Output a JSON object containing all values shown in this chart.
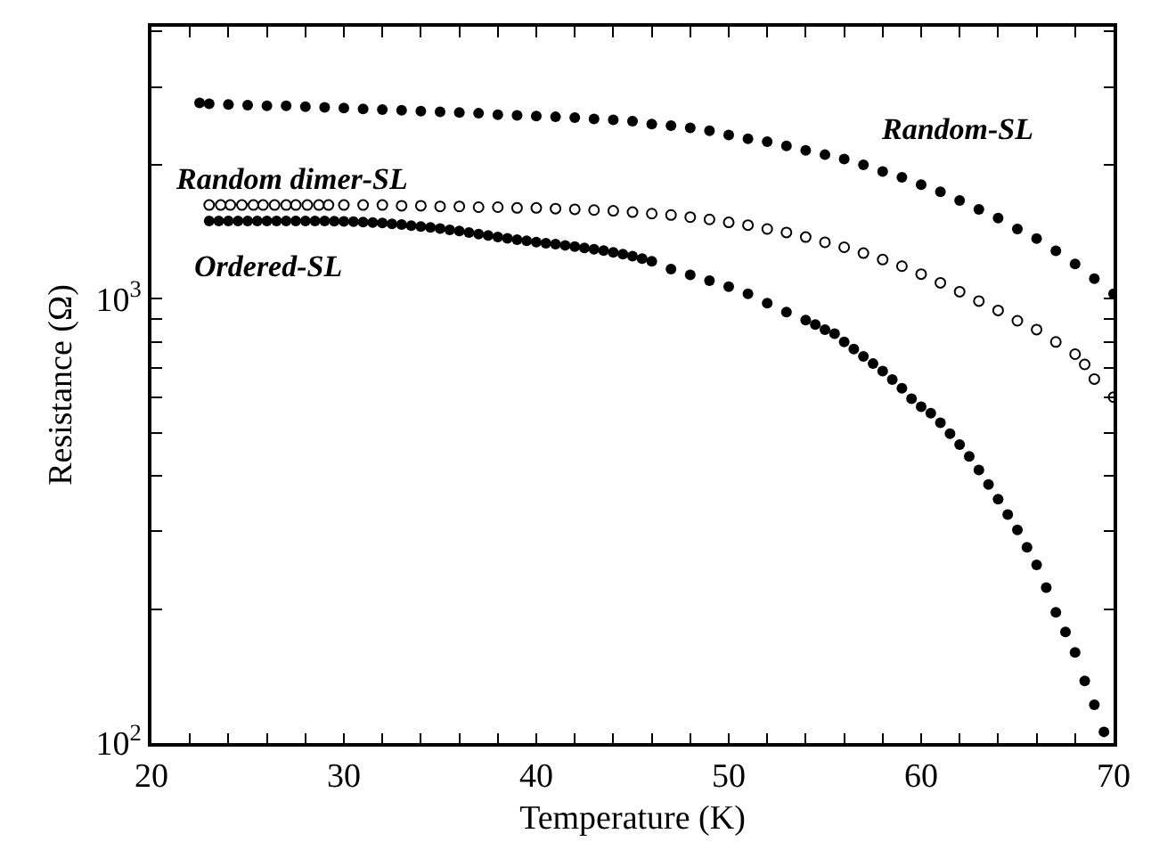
{
  "chart_data": {
    "type": "scatter",
    "xlabel": "Temperature (K)",
    "ylabel": "Resistance (Ω)",
    "log": "y",
    "legend": false,
    "xlim": [
      20,
      70
    ],
    "ylim": [
      100,
      4100
    ],
    "xticks": [
      20,
      {
        "value": 22,
        "label": null
      },
      {
        "value": 24,
        "label": null
      },
      {
        "value": 26,
        "label": null
      },
      {
        "value": 28,
        "label": null
      },
      30,
      {
        "value": 32,
        "label": null
      },
      {
        "value": 34,
        "label": null
      },
      {
        "value": 36,
        "label": null
      },
      {
        "value": 38,
        "label": null
      },
      40,
      {
        "value": 42,
        "label": null
      },
      {
        "value": 44,
        "label": null
      },
      {
        "value": 46,
        "label": null
      },
      {
        "value": 48,
        "label": null
      },
      50,
      {
        "value": 52,
        "label": null
      },
      {
        "value": 54,
        "label": null
      },
      {
        "value": 56,
        "label": null
      },
      {
        "value": 58,
        "label": null
      },
      60,
      {
        "value": 62,
        "label": null
      },
      {
        "value": 64,
        "label": null
      },
      {
        "value": 66,
        "label": null
      },
      {
        "value": 68,
        "label": null
      },
      70
    ],
    "yticks": [
      {
        "value": 100,
        "label": "10$^{2}$"
      },
      {
        "value": 200,
        "label": null
      },
      {
        "value": 300,
        "label": null
      },
      {
        "value": 400,
        "label": null
      },
      {
        "value": 500,
        "label": null
      },
      {
        "value": 600,
        "label": null
      },
      {
        "value": 700,
        "label": null
      },
      {
        "value": 800,
        "label": null
      },
      {
        "value": 900,
        "label": null
      },
      {
        "value": 1000,
        "label": "10$^{3}$"
      },
      {
        "value": 2000,
        "label": null
      },
      {
        "value": 3000,
        "label": null
      },
      {
        "value": 4000,
        "label": null
      }
    ],
    "series": [
      {
        "name": "Random-SL",
        "color": "#000000",
        "marker": "circle",
        "x": [
          22.5,
          23,
          24,
          25,
          26,
          27,
          28,
          29,
          30,
          31,
          32,
          33,
          34,
          35,
          36,
          37,
          38,
          39,
          40,
          41,
          42,
          43,
          44,
          45,
          46,
          47,
          48,
          49,
          50,
          51,
          52,
          53,
          54,
          55,
          56,
          57,
          58,
          59,
          60,
          61,
          62,
          63,
          64,
          65,
          66,
          67,
          68,
          69,
          70
        ],
        "values": [
          2761,
          2750,
          2741,
          2730,
          2720,
          2720,
          2709,
          2699,
          2689,
          2679,
          2668,
          2658,
          2648,
          2638,
          2628,
          2618,
          2599,
          2589,
          2579,
          2570,
          2560,
          2541,
          2531,
          2512,
          2474,
          2455,
          2427,
          2391,
          2338,
          2294,
          2260,
          2210,
          2160,
          2112,
          2064,
          2003,
          1936,
          1879,
          1809,
          1742,
          1665,
          1591,
          1521,
          1437,
          1368,
          1283,
          1199,
          1111,
          1027
        ]
      },
      {
        "name": "Random dimer-SL",
        "color": "#000000",
        "marker": "circle-open",
        "x": [
          23.0,
          23.6,
          24.1,
          24.7,
          25.3,
          25.8,
          26.4,
          27.0,
          27.5,
          28.1,
          28.7,
          29.2,
          30,
          31,
          32,
          33,
          34,
          35,
          36,
          37,
          38,
          39,
          40,
          41,
          42,
          43,
          44,
          45,
          46,
          47,
          48,
          49,
          50,
          51,
          52,
          53,
          54,
          55,
          56,
          57,
          58,
          59,
          60,
          61,
          62,
          63,
          64,
          65,
          66,
          67,
          68,
          68.5,
          69,
          70
        ],
        "values": [
          1627,
          1627,
          1627,
          1627,
          1627,
          1627,
          1627,
          1627,
          1627,
          1627,
          1627,
          1627,
          1627,
          1627,
          1627,
          1621,
          1621,
          1615,
          1615,
          1609,
          1609,
          1603,
          1603,
          1597,
          1591,
          1585,
          1579,
          1568,
          1556,
          1545,
          1528,
          1510,
          1487,
          1466,
          1437,
          1411,
          1378,
          1341,
          1307,
          1268,
          1226,
          1185,
          1137,
          1087,
          1038,
          989,
          942,
          893,
          853,
          800,
          751,
          712,
          660,
          601
        ]
      },
      {
        "name": "Ordered-SL",
        "color": "#000000",
        "marker": "circle",
        "x": [
          23,
          23.5,
          24,
          24.5,
          25,
          25.5,
          26,
          26.5,
          27,
          27.5,
          28,
          28.5,
          29,
          29.5,
          30,
          30.5,
          31,
          31.5,
          32,
          32.5,
          33,
          33.5,
          34,
          34.5,
          35,
          35.5,
          36,
          36.5,
          37,
          37.5,
          38,
          38.5,
          39,
          39.5,
          40,
          40.5,
          41,
          41.5,
          42,
          42.5,
          43,
          43.5,
          44,
          44.5,
          45,
          45.5,
          46,
          47,
          48,
          49,
          50,
          51,
          52,
          53,
          54,
          54.5,
          55,
          55.5,
          56,
          56.5,
          57,
          57.5,
          58,
          58.5,
          59,
          59.5,
          60,
          60.5,
          61,
          61.5,
          62,
          62.5,
          63,
          63.5,
          64,
          64.5,
          65,
          65.5,
          66,
          66.5,
          67,
          67.5,
          68,
          68.5,
          69,
          69.5
        ],
        "values": [
          1498,
          1498,
          1498,
          1498,
          1498,
          1498,
          1498,
          1498,
          1498,
          1498,
          1498,
          1498,
          1498,
          1497,
          1495,
          1492,
          1490,
          1486,
          1482,
          1476,
          1470,
          1462,
          1455,
          1448,
          1440,
          1431,
          1422,
          1411,
          1400,
          1389,
          1378,
          1369,
          1360,
          1351,
          1342,
          1335,
          1328,
          1320,
          1312,
          1303,
          1294,
          1284,
          1273,
          1261,
          1248,
          1232,
          1215,
          1167,
          1133,
          1099,
          1066,
          1027,
          978,
          934,
          896,
          876,
          853,
          835,
          800,
          771,
          742,
          715,
          688,
          658,
          629,
          596,
          572,
          553,
          526,
          497,
          470,
          442,
          412,
          382,
          354,
          327,
          302,
          276,
          252,
          224,
          197,
          178,
          160,
          138,
          122,
          106
        ]
      }
    ]
  }
}
